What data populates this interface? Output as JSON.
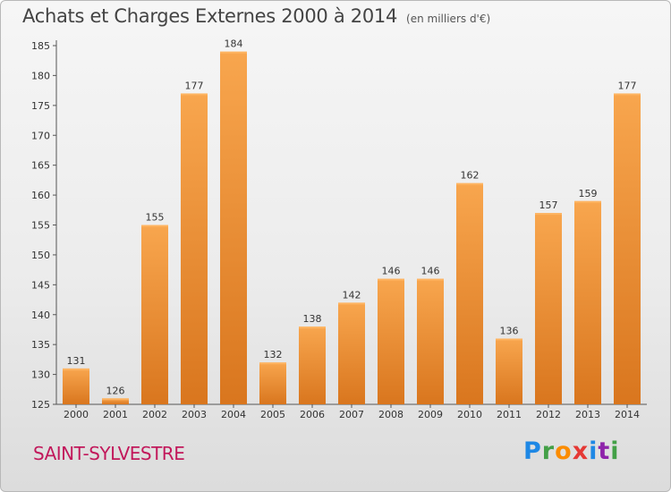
{
  "header": {
    "title": "Achats et Charges Externes 2000 à 2014",
    "unit": "(en milliers d'€)"
  },
  "footer": {
    "commune": "SAINT-SYLVESTRE",
    "logo_letters": [
      "P",
      "r",
      "o",
      "x",
      "i",
      "t",
      "i"
    ],
    "logo_colors": [
      "#1e88e5",
      "#43a047",
      "#fb8c00",
      "#e53935",
      "#1e88e5",
      "#8e24aa",
      "#43a047"
    ]
  },
  "chart_data": {
    "type": "bar",
    "title": "Achats et Charges Externes 2000 à 2014",
    "subtitle": "(en milliers d'€)",
    "categories": [
      "2000",
      "2001",
      "2002",
      "2003",
      "2004",
      "2005",
      "2006",
      "2007",
      "2008",
      "2009",
      "2010",
      "2011",
      "2012",
      "2013",
      "2014"
    ],
    "values": [
      131,
      126,
      155,
      177,
      184,
      132,
      138,
      142,
      146,
      146,
      162,
      136,
      157,
      159,
      177
    ],
    "xlabel": "",
    "ylabel": "",
    "ylim": [
      125,
      185
    ],
    "yticks": [
      125,
      130,
      135,
      140,
      145,
      150,
      155,
      160,
      165,
      170,
      175,
      180,
      185
    ],
    "grid": false,
    "bar_color_top": "#f8a64e",
    "bar_color_bottom": "#d9761e"
  }
}
